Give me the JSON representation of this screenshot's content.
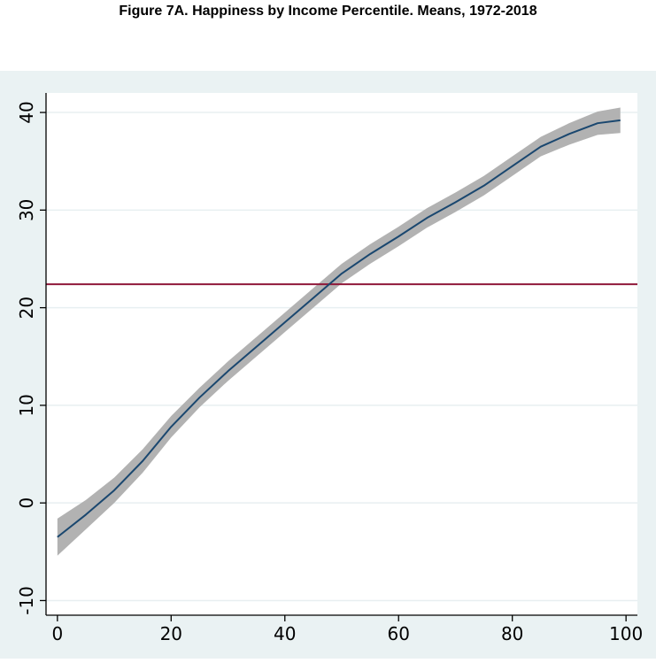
{
  "title": "Figure 7A. Happiness by Income Percentile. Means, 1972-2018",
  "chart_data": {
    "type": "line",
    "title": "Figure 7A. Happiness by Income Percentile. Means, 1972-2018",
    "xlabel": "",
    "ylabel": "",
    "xlim": [
      -2,
      102
    ],
    "ylim": [
      -11.5,
      42
    ],
    "xticks": [
      0,
      20,
      40,
      60,
      80,
      100
    ],
    "yticks": [
      -10,
      0,
      10,
      20,
      30,
      40
    ],
    "grid": true,
    "reference_line_y": 22.4,
    "series": [
      {
        "x": [
          0,
          5,
          10,
          15,
          20,
          25,
          30,
          35,
          40,
          45,
          50,
          55,
          60,
          65,
          70,
          75,
          80,
          85,
          90,
          95,
          99
        ],
        "values": [
          -3.5,
          -1.2,
          1.3,
          4.3,
          7.8,
          10.8,
          13.5,
          16.0,
          18.5,
          21.0,
          23.5,
          25.5,
          27.3,
          29.2,
          30.8,
          32.5,
          34.5,
          36.5,
          37.8,
          38.9,
          39.2
        ],
        "ci_halfwidth": [
          1.9,
          1.5,
          1.3,
          1.2,
          1.1,
          1.0,
          1.0,
          1.0,
          1.0,
          1.0,
          1.0,
          1.0,
          1.0,
          1.0,
          1.0,
          1.0,
          1.0,
          1.0,
          1.1,
          1.2,
          1.3
        ]
      }
    ],
    "colors": {
      "outer_bg": "#eaf2f3",
      "plot_bg": "#ffffff",
      "grid": "#e8eff1",
      "line": "#1a476f",
      "ci_band": "#b2b2b2",
      "reference": "#90193a",
      "axis": "#000000"
    }
  }
}
